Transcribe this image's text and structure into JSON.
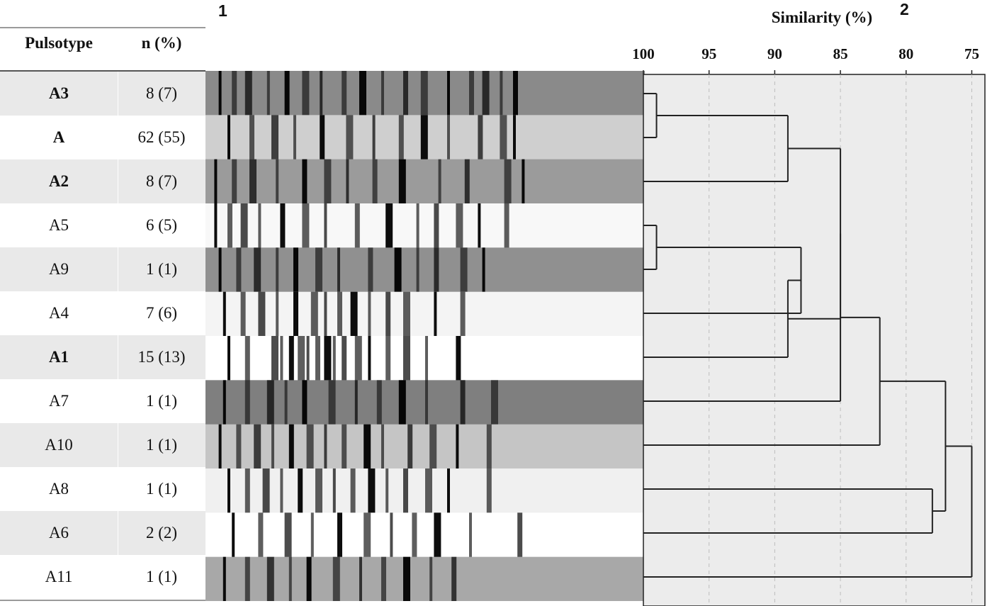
{
  "panel_labels": {
    "left": "1",
    "right": "2"
  },
  "table": {
    "headers": {
      "pulsotype": "Pulsotype",
      "n": "n (%)"
    },
    "rows": [
      {
        "pulsotype": "A3",
        "n": "8 (7)",
        "bold": true
      },
      {
        "pulsotype": "A",
        "n": "62 (55)",
        "bold": true
      },
      {
        "pulsotype": "A2",
        "n": "8 (7)",
        "bold": true
      },
      {
        "pulsotype": "A5",
        "n": "6 (5)",
        "bold": false
      },
      {
        "pulsotype": "A9",
        "n": "1 (1)",
        "bold": false
      },
      {
        "pulsotype": "A4",
        "n": "7 (6)",
        "bold": false
      },
      {
        "pulsotype": "A1",
        "n": "15 (13)",
        "bold": true
      },
      {
        "pulsotype": "A7",
        "n": "1 (1)",
        "bold": false
      },
      {
        "pulsotype": "A10",
        "n": "1 (1)",
        "bold": false
      },
      {
        "pulsotype": "A8",
        "n": "1 (1)",
        "bold": false
      },
      {
        "pulsotype": "A6",
        "n": "2 (2)",
        "bold": false
      },
      {
        "pulsotype": "A11",
        "n": "1 (1)",
        "bold": false
      }
    ]
  },
  "gel": {
    "colors": {
      "dark_band": "#000000",
      "background_light": "#ffffff"
    },
    "lanes": [
      {
        "bg": "#8a8a8a",
        "bands": [
          3,
          6,
          9,
          14,
          18,
          22,
          26,
          31,
          35,
          40,
          45,
          49,
          55,
          60,
          63,
          67,
          70
        ]
      },
      {
        "bg": "#cfcfcf",
        "bands": [
          5,
          10,
          15,
          20,
          26,
          32,
          38,
          44,
          49,
          55,
          62,
          67,
          70
        ]
      },
      {
        "bg": "#9b9b9b",
        "bands": [
          2,
          6,
          10,
          16,
          22,
          27,
          32,
          38,
          44,
          53,
          59,
          68,
          72
        ]
      },
      {
        "bg": "#f8f8f8",
        "bands": [
          2,
          5,
          8,
          12,
          17,
          22,
          27,
          34,
          41,
          48,
          52,
          57,
          62,
          68
        ]
      },
      {
        "bg": "#909090",
        "bands": [
          3,
          7,
          11,
          16,
          20,
          25,
          30,
          37,
          43,
          48,
          52,
          58,
          63
        ]
      },
      {
        "bg": "#f4f4f4",
        "bands": [
          4,
          8,
          12,
          16,
          20,
          24,
          27,
          30,
          33,
          37,
          41,
          45,
          52,
          58
        ]
      },
      {
        "bg": "#ffffff",
        "bands": [
          5,
          9,
          15,
          17,
          19,
          21,
          23,
          25,
          27,
          29,
          31,
          34,
          37,
          41,
          45,
          50,
          57
        ]
      },
      {
        "bg": "#7f7f7f",
        "bands": [
          4,
          9,
          14,
          18,
          22,
          28,
          34,
          39,
          44,
          50,
          58,
          65
        ]
      },
      {
        "bg": "#c5c5c5",
        "bands": [
          3,
          7,
          11,
          15,
          19,
          23,
          27,
          31,
          36,
          40,
          46,
          51,
          57,
          64
        ]
      },
      {
        "bg": "#f0f0f0",
        "bands": [
          5,
          9,
          13,
          17,
          21,
          25,
          29,
          33,
          37,
          41,
          45,
          50,
          55,
          64
        ]
      },
      {
        "bg": "#ffffff",
        "bands": [
          6,
          12,
          18,
          24,
          30,
          36,
          42,
          47,
          52,
          60,
          71
        ]
      },
      {
        "bg": "#a8a8a8",
        "bands": [
          4,
          9,
          14,
          19,
          23,
          29,
          35,
          40,
          45,
          51,
          56
        ]
      }
    ]
  },
  "dendrogram": {
    "axis_title": "Similarity (%)",
    "ticks": [
      "100",
      "95",
      "90",
      "85",
      "80",
      "75"
    ],
    "tick_values": [
      100,
      95,
      90,
      85,
      80,
      75
    ],
    "xlim": [
      100,
      74
    ],
    "colors": {
      "panel_bg": "#ececec",
      "line": "#222222",
      "grid": "#bdbdbd"
    },
    "merges": [
      {
        "join": [
          "A3",
          "A"
        ],
        "similarity": 99
      },
      {
        "join": [
          "A5",
          "A9"
        ],
        "similarity": 99
      },
      {
        "join": [
          "A5+A9",
          "A4"
        ],
        "similarity": 88
      },
      {
        "join": [
          "A3+A",
          "A2"
        ],
        "similarity": 89
      },
      {
        "join": [
          "A5+A9+A4",
          "A1"
        ],
        "similarity": 89
      },
      {
        "join": [
          "A3+A+A2",
          "A5+A9+A4+A1"
        ],
        "similarity": 85
      },
      {
        "join": [
          "...",
          "A7"
        ],
        "similarity": 85
      },
      {
        "join": [
          "...",
          "A10"
        ],
        "similarity": 82
      },
      {
        "join": [
          "A8",
          "A6"
        ],
        "similarity": 78
      },
      {
        "join": [
          "...",
          "A8+A6"
        ],
        "similarity": 77
      },
      {
        "join": [
          "...",
          "A11"
        ],
        "similarity": 75
      }
    ]
  }
}
